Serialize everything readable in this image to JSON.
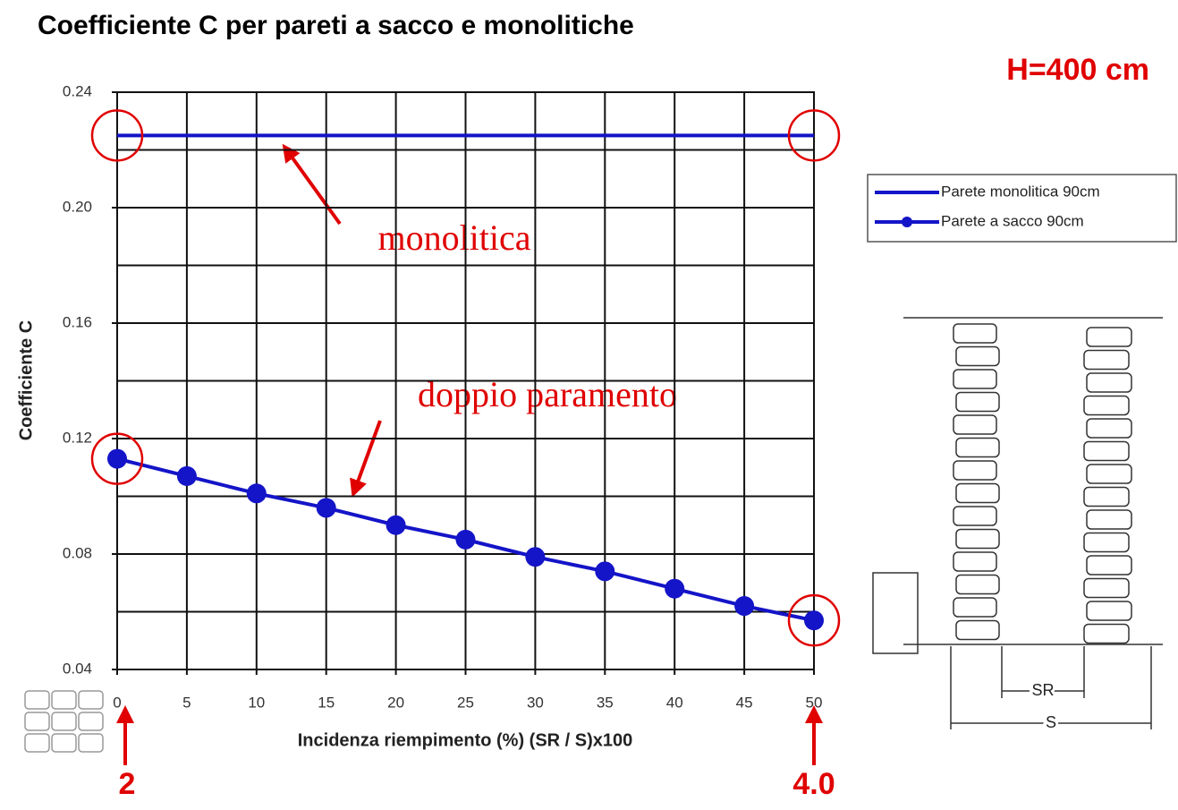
{
  "chart_data": {
    "type": "line",
    "title": "Coefficiente C per pareti a sacco e monolitiche",
    "subtitle": "H=400 cm",
    "x_label": "Incidenza riempimento (%) (SR / S)x100",
    "y_label": "Coefficiente C",
    "x": [
      0,
      5,
      10,
      15,
      20,
      25,
      30,
      35,
      40,
      45,
      50
    ],
    "series": [
      {
        "name": "Parete monolitica 90cm",
        "color": "#1414c8",
        "marker": false,
        "values": [
          0.225,
          0.225,
          0.225,
          0.225,
          0.225,
          0.225,
          0.225,
          0.225,
          0.225,
          0.225,
          0.225
        ]
      },
      {
        "name": "Parete a sacco 90cm",
        "color": "#1414c8",
        "marker": true,
        "values": [
          0.113,
          0.107,
          0.101,
          0.096,
          0.09,
          0.085,
          0.079,
          0.074,
          0.068,
          0.062,
          0.057
        ]
      }
    ],
    "xlim": [
      0,
      50
    ],
    "xticks": [
      0,
      5,
      10,
      15,
      20,
      25,
      30,
      35,
      40,
      45,
      50
    ],
    "ylim": [
      0.04,
      0.24
    ],
    "yticks": [
      {
        "value": 0.04,
        "label": "0.04"
      },
      {
        "value": 0.08,
        "label": "0.08"
      },
      {
        "value": 0.12,
        "label": "0.12"
      },
      {
        "value": 0.16,
        "label": "0.16"
      },
      {
        "value": 0.2,
        "label": "0.20"
      },
      {
        "value": 0.24,
        "label": "0.24"
      }
    ],
    "y_minor_ticks": [
      0.06,
      0.1,
      0.14,
      0.18,
      0.22
    ],
    "grid": true,
    "legend": "right",
    "annotations": [
      "monolitica",
      "doppio paramento",
      "2",
      "4.0"
    ],
    "diagram_labels": [
      "SR",
      "S"
    ]
  }
}
